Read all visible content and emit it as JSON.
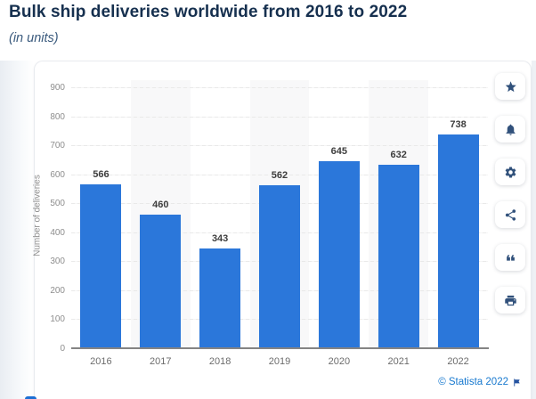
{
  "page": {
    "title": "Bulk ship deliveries worldwide from 2016 to 2022",
    "subtitle": "(in units)",
    "credit": "© Statista 2022"
  },
  "chart_data": {
    "type": "bar",
    "title": "Bulk ship deliveries worldwide from 2016 to 2022",
    "subtitle": "(in units)",
    "categories": [
      "2016",
      "2017",
      "2018",
      "2019",
      "2020",
      "2021",
      "2022"
    ],
    "values": [
      566,
      460,
      343,
      562,
      645,
      632,
      738
    ],
    "xlabel": "",
    "ylabel": "Number of deliveries",
    "ylim": [
      0,
      900
    ],
    "ytick_interval": 100,
    "yticks": [
      0,
      100,
      200,
      300,
      400,
      500,
      600,
      700,
      800,
      900
    ],
    "grid": true,
    "data_labels": true,
    "legend": false,
    "bar_color": "#2b77da",
    "alt_band_color": "#f8f8f9"
  },
  "toolbar": {
    "buttons": [
      {
        "name": "favorite",
        "icon": "star-icon"
      },
      {
        "name": "alerts",
        "icon": "bell-icon"
      },
      {
        "name": "settings",
        "icon": "gear-icon"
      },
      {
        "name": "share",
        "icon": "share-icon"
      },
      {
        "name": "cite",
        "icon": "quote-icon"
      },
      {
        "name": "print",
        "icon": "print-icon"
      }
    ]
  },
  "colors": {
    "title": "#16304f",
    "subtitle": "#3a5a7d",
    "bar": "#2b77da",
    "credit_link": "#1879cf",
    "icon": "#31517b"
  }
}
